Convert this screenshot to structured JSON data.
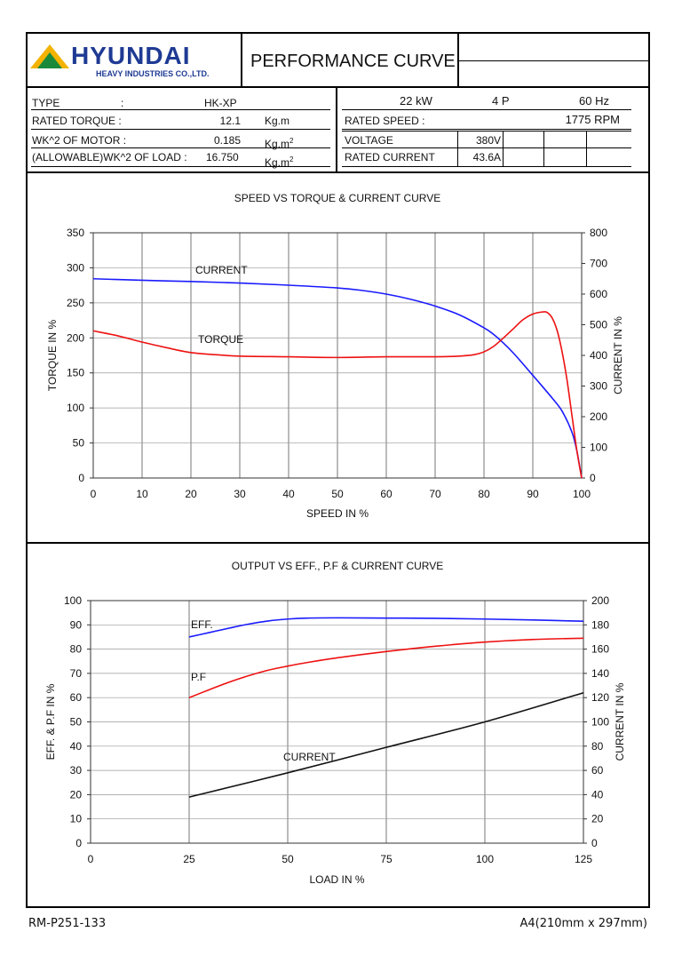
{
  "header": {
    "logo_name": "HYUNDAI",
    "logo_sub": "HEAVY INDUSTRIES CO.,LTD.",
    "doc_title": "PERFORMANCE CURVE"
  },
  "specs_left": {
    "type_label": "TYPE",
    "type_colon": ":",
    "type_value": "HK-XP",
    "rated_torque_label": "RATED TORQUE :",
    "rated_torque_value": "12.1",
    "rated_torque_unit": "Kg.m",
    "wk_motor_label": "WK^2 OF MOTOR :",
    "wk_motor_value": "0.185",
    "wk_motor_unit": "Kg.m",
    "wk_motor_unit_sup": "2",
    "wk_load_label": "(ALLOWABLE)WK^2 OF LOAD :",
    "wk_load_value": "16.750",
    "wk_load_unit": "Kg.m",
    "wk_load_unit_sup": "2"
  },
  "specs_right": {
    "power": "22 kW",
    "poles": "4 P",
    "frequency": "60 Hz",
    "rated_speed_label": "RATED SPEED :",
    "rated_speed_value": "1775 RPM",
    "voltage_label": "VOLTAGE",
    "voltage_value": "380V",
    "rated_current_label": "RATED CURRENT",
    "rated_current_value": "43.6A"
  },
  "footer": {
    "doc_number": "RM-P251-133",
    "paper_size": "A4(210mm x 297mm)"
  },
  "chart_data": [
    {
      "type": "line",
      "title": "SPEED VS TORQUE & CURRENT CURVE",
      "xlabel": "SPEED IN %",
      "ylabel": "TORQUE IN %",
      "y2label": "CURRENT IN %",
      "xlim": [
        0,
        100
      ],
      "ylim": [
        0,
        350
      ],
      "y2lim": [
        0,
        800
      ],
      "xticks": [
        0,
        10,
        20,
        30,
        40,
        50,
        60,
        70,
        80,
        90,
        100
      ],
      "yticks": [
        0,
        50,
        100,
        150,
        200,
        250,
        300,
        350
      ],
      "y2ticks": [
        0,
        100,
        200,
        300,
        400,
        500,
        600,
        700,
        800
      ],
      "grid": true,
      "series": [
        {
          "name": "CURRENT",
          "axis": "right",
          "color": "#1a1aff",
          "points": [
            [
              0,
              650
            ],
            [
              10,
              645
            ],
            [
              20,
              641
            ],
            [
              30,
              636
            ],
            [
              40,
              629
            ],
            [
              50,
              620
            ],
            [
              55,
              612
            ],
            [
              60,
              600
            ],
            [
              65,
              583
            ],
            [
              70,
              561
            ],
            [
              75,
              532
            ],
            [
              80,
              490
            ],
            [
              82,
              468
            ],
            [
              84,
              440
            ],
            [
              86,
              408
            ],
            [
              88,
              372
            ],
            [
              90,
              335
            ],
            [
              92,
              298
            ],
            [
              94,
              260
            ],
            [
              96,
              218
            ],
            [
              98,
              150
            ],
            [
              99,
              90
            ],
            [
              100,
              0
            ]
          ]
        },
        {
          "name": "TORQUE",
          "axis": "left",
          "color": "#ee1111",
          "points": [
            [
              0,
              210
            ],
            [
              5,
              203
            ],
            [
              10,
              194
            ],
            [
              15,
              186
            ],
            [
              20,
              179
            ],
            [
              25,
              176
            ],
            [
              30,
              174
            ],
            [
              40,
              173
            ],
            [
              50,
              172
            ],
            [
              60,
              173
            ],
            [
              70,
              173
            ],
            [
              75,
              174
            ],
            [
              78,
              176
            ],
            [
              80,
              180
            ],
            [
              82,
              188
            ],
            [
              84,
              200
            ],
            [
              86,
              213
            ],
            [
              88,
              226
            ],
            [
              90,
              234
            ],
            [
              92,
              237
            ],
            [
              93,
              236
            ],
            [
              94,
              228
            ],
            [
              95,
              210
            ],
            [
              96,
              180
            ],
            [
              97,
              140
            ],
            [
              98,
              90
            ],
            [
              99,
              40
            ],
            [
              100,
              0
            ]
          ]
        }
      ]
    },
    {
      "type": "line",
      "title": "OUTPUT VS EFF., P.F & CURRENT CURVE",
      "xlabel": "LOAD IN %",
      "ylabel": "EFF. & P.F IN %",
      "y2label": "CURRENT IN %",
      "xlim": [
        0,
        125
      ],
      "ylim": [
        0,
        100
      ],
      "y2lim": [
        0,
        200
      ],
      "xticks": [
        0,
        25,
        50,
        75,
        100,
        125
      ],
      "yticks": [
        0,
        10,
        20,
        30,
        40,
        50,
        60,
        70,
        80,
        90,
        100
      ],
      "y2ticks": [
        0,
        20,
        40,
        60,
        80,
        100,
        120,
        140,
        160,
        180,
        200
      ],
      "grid": true,
      "series": [
        {
          "name": "EFF.",
          "axis": "left",
          "color": "#1a1aff",
          "points": [
            [
              25,
              85
            ],
            [
              30,
              86.8
            ],
            [
              35,
              88.6
            ],
            [
              40,
              90.3
            ],
            [
              45,
              91.6
            ],
            [
              50,
              92.4
            ],
            [
              55,
              92.8
            ],
            [
              62.5,
              92.9
            ],
            [
              75,
              92.8
            ],
            [
              87.5,
              92.7
            ],
            [
              100,
              92.4
            ],
            [
              112.5,
              92.0
            ],
            [
              125,
              91.5
            ]
          ]
        },
        {
          "name": "P.F",
          "axis": "left",
          "color": "#ee1111",
          "points": [
            [
              25,
              60
            ],
            [
              30,
              63.2
            ],
            [
              35,
              66.3
            ],
            [
              40,
              69
            ],
            [
              45,
              71.3
            ],
            [
              50,
              73
            ],
            [
              55,
              74.5
            ],
            [
              62.5,
              76.4
            ],
            [
              75,
              79
            ],
            [
              87.5,
              81.2
            ],
            [
              100,
              82.9
            ],
            [
              112.5,
              84
            ],
            [
              125,
              84.5
            ]
          ]
        },
        {
          "name": "CURRENT",
          "axis": "right",
          "color": "#111111",
          "points": [
            [
              25,
              38
            ],
            [
              50,
              58
            ],
            [
              75,
              79
            ],
            [
              100,
              100
            ],
            [
              125,
              124
            ]
          ]
        }
      ]
    }
  ]
}
